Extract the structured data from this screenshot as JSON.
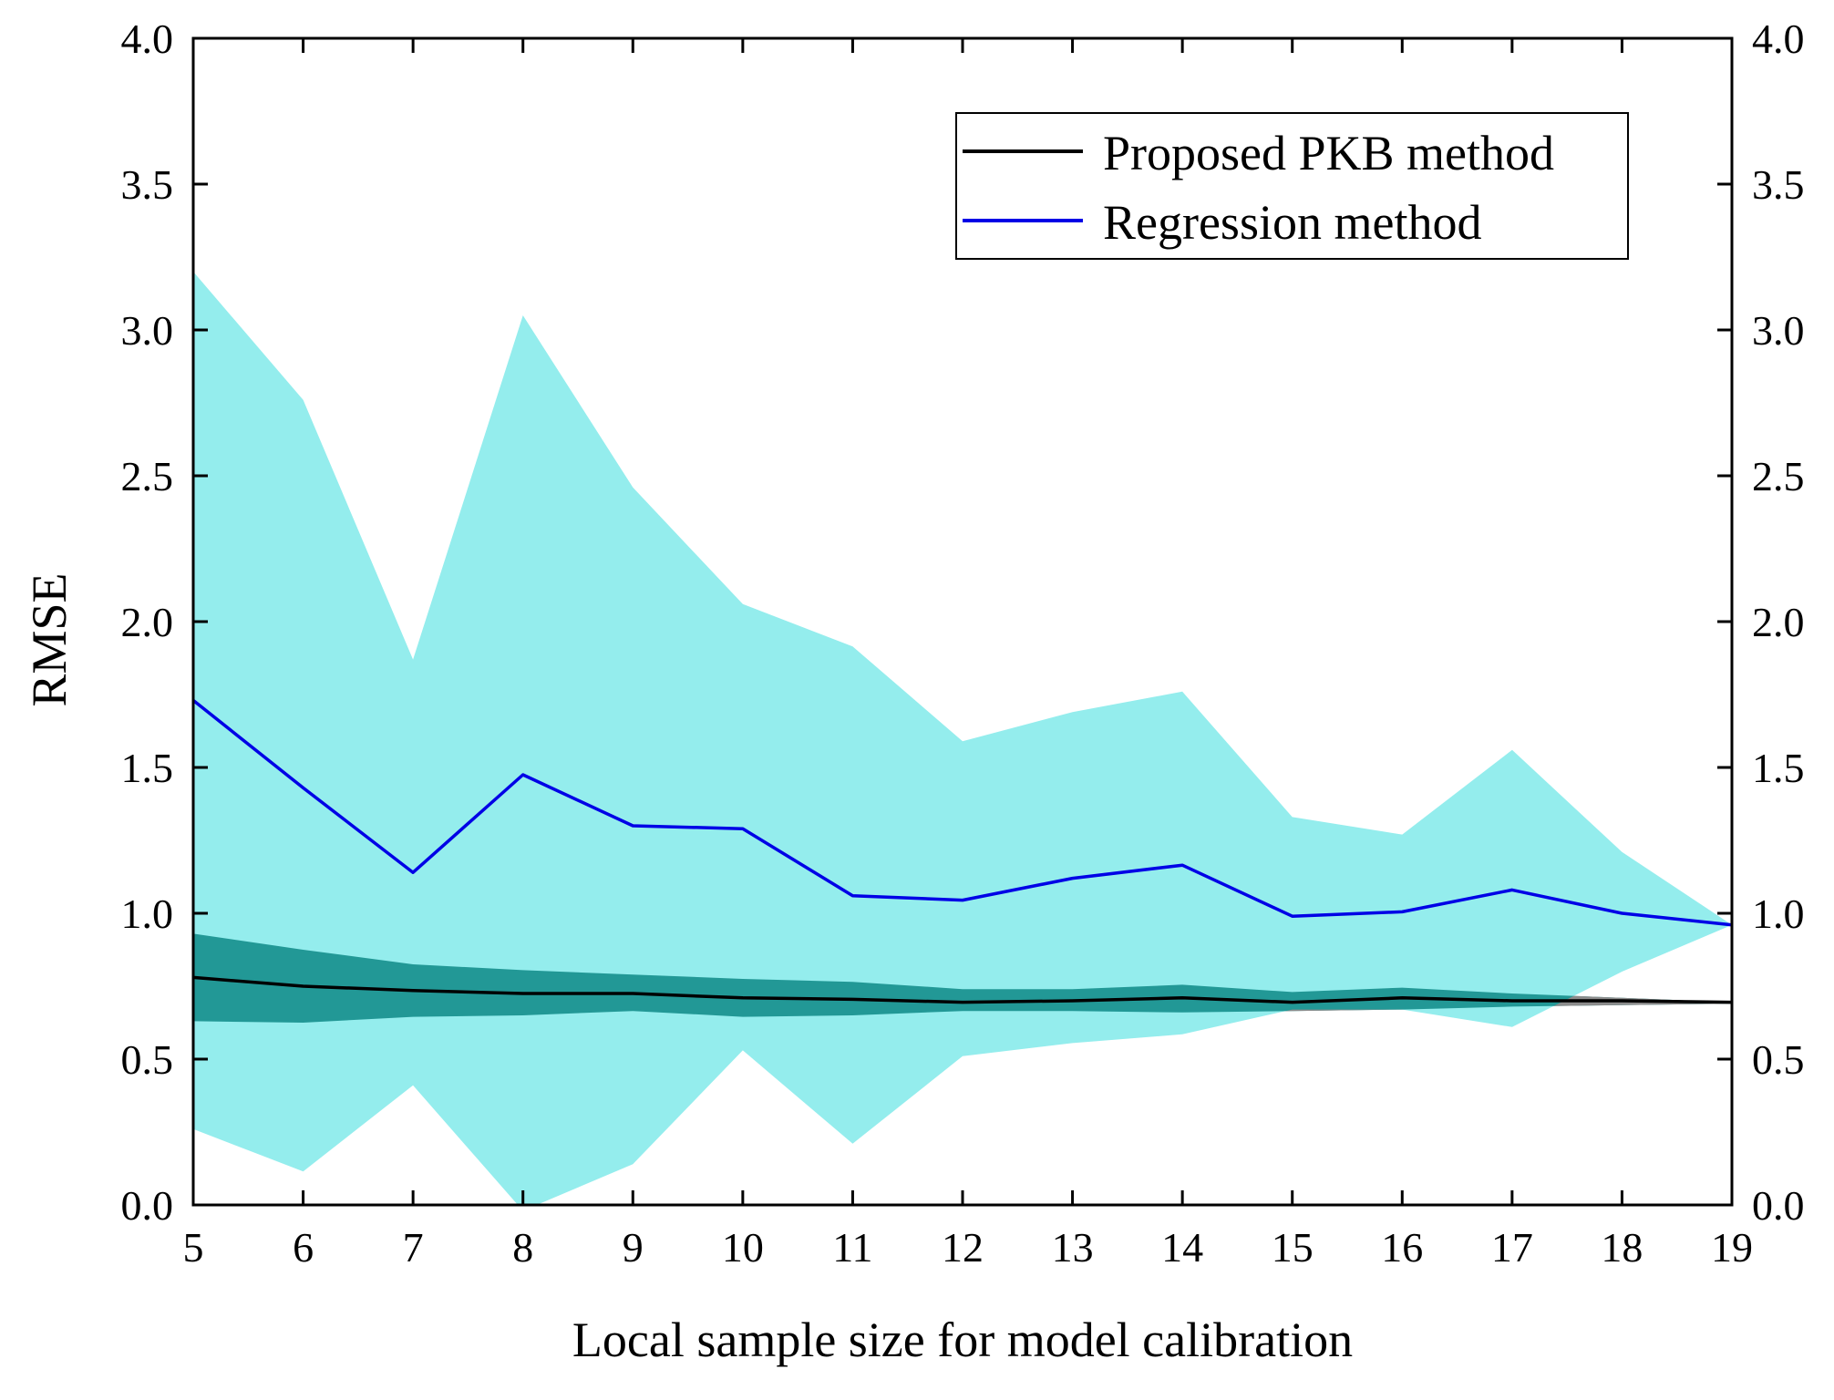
{
  "chart_data": {
    "type": "line",
    "title": "",
    "xlabel": "Local sample size for model calibration",
    "ylabel": "RMSE",
    "xlim": [
      5,
      19
    ],
    "ylim": [
      0.0,
      4.0
    ],
    "x_ticks": [
      5,
      6,
      7,
      8,
      9,
      10,
      11,
      12,
      13,
      14,
      15,
      16,
      17,
      18,
      19
    ],
    "x_tick_labels": [
      "5",
      "6",
      "7",
      "8",
      "9",
      "10",
      "11",
      "12",
      "13",
      "14",
      "15",
      "16",
      "17",
      "18",
      "19"
    ],
    "y_ticks": [
      0.0,
      0.5,
      1.0,
      1.5,
      2.0,
      2.5,
      3.0,
      3.5,
      4.0
    ],
    "y_tick_labels": [
      "0.0",
      "0.5",
      "1.0",
      "1.5",
      "2.0",
      "2.5",
      "3.0",
      "3.5",
      "4.0"
    ],
    "right_axis_mirrored": true,
    "grid": false,
    "legend_position": "top-right",
    "x": [
      5,
      6,
      7,
      8,
      9,
      10,
      11,
      12,
      13,
      14,
      15,
      16,
      17,
      18,
      19
    ],
    "series": [
      {
        "name": "Proposed PKB method",
        "color": "#000000",
        "values": [
          0.78,
          0.75,
          0.735,
          0.725,
          0.725,
          0.71,
          0.705,
          0.695,
          0.7,
          0.71,
          0.695,
          0.71,
          0.7,
          0.7,
          0.695
        ],
        "band_lower": [
          0.63,
          0.625,
          0.645,
          0.65,
          0.665,
          0.645,
          0.65,
          0.665,
          0.665,
          0.66,
          0.665,
          0.67,
          0.68,
          0.685,
          0.69
        ],
        "band_upper": [
          0.93,
          0.875,
          0.825,
          0.805,
          0.79,
          0.775,
          0.765,
          0.74,
          0.74,
          0.755,
          0.73,
          0.745,
          0.725,
          0.71,
          0.695
        ],
        "band_color": "#229896"
      },
      {
        "name": "Regression method",
        "color": "#0000e6",
        "values": [
          1.73,
          1.43,
          1.14,
          1.475,
          1.3,
          1.29,
          1.06,
          1.045,
          1.12,
          1.165,
          0.99,
          1.005,
          1.08,
          1.0,
          0.96
        ],
        "band_lower": [
          0.26,
          0.115,
          0.41,
          -0.02,
          0.14,
          0.53,
          0.21,
          0.51,
          0.555,
          0.585,
          0.67,
          0.67,
          0.61,
          0.8,
          0.96
        ],
        "band_upper": [
          3.2,
          2.76,
          1.87,
          3.05,
          2.46,
          2.06,
          1.915,
          1.59,
          1.69,
          1.76,
          1.33,
          1.27,
          1.56,
          1.21,
          0.96
        ],
        "band_color": "#94eded"
      }
    ],
    "overlap_color": "#8c8c8c"
  }
}
